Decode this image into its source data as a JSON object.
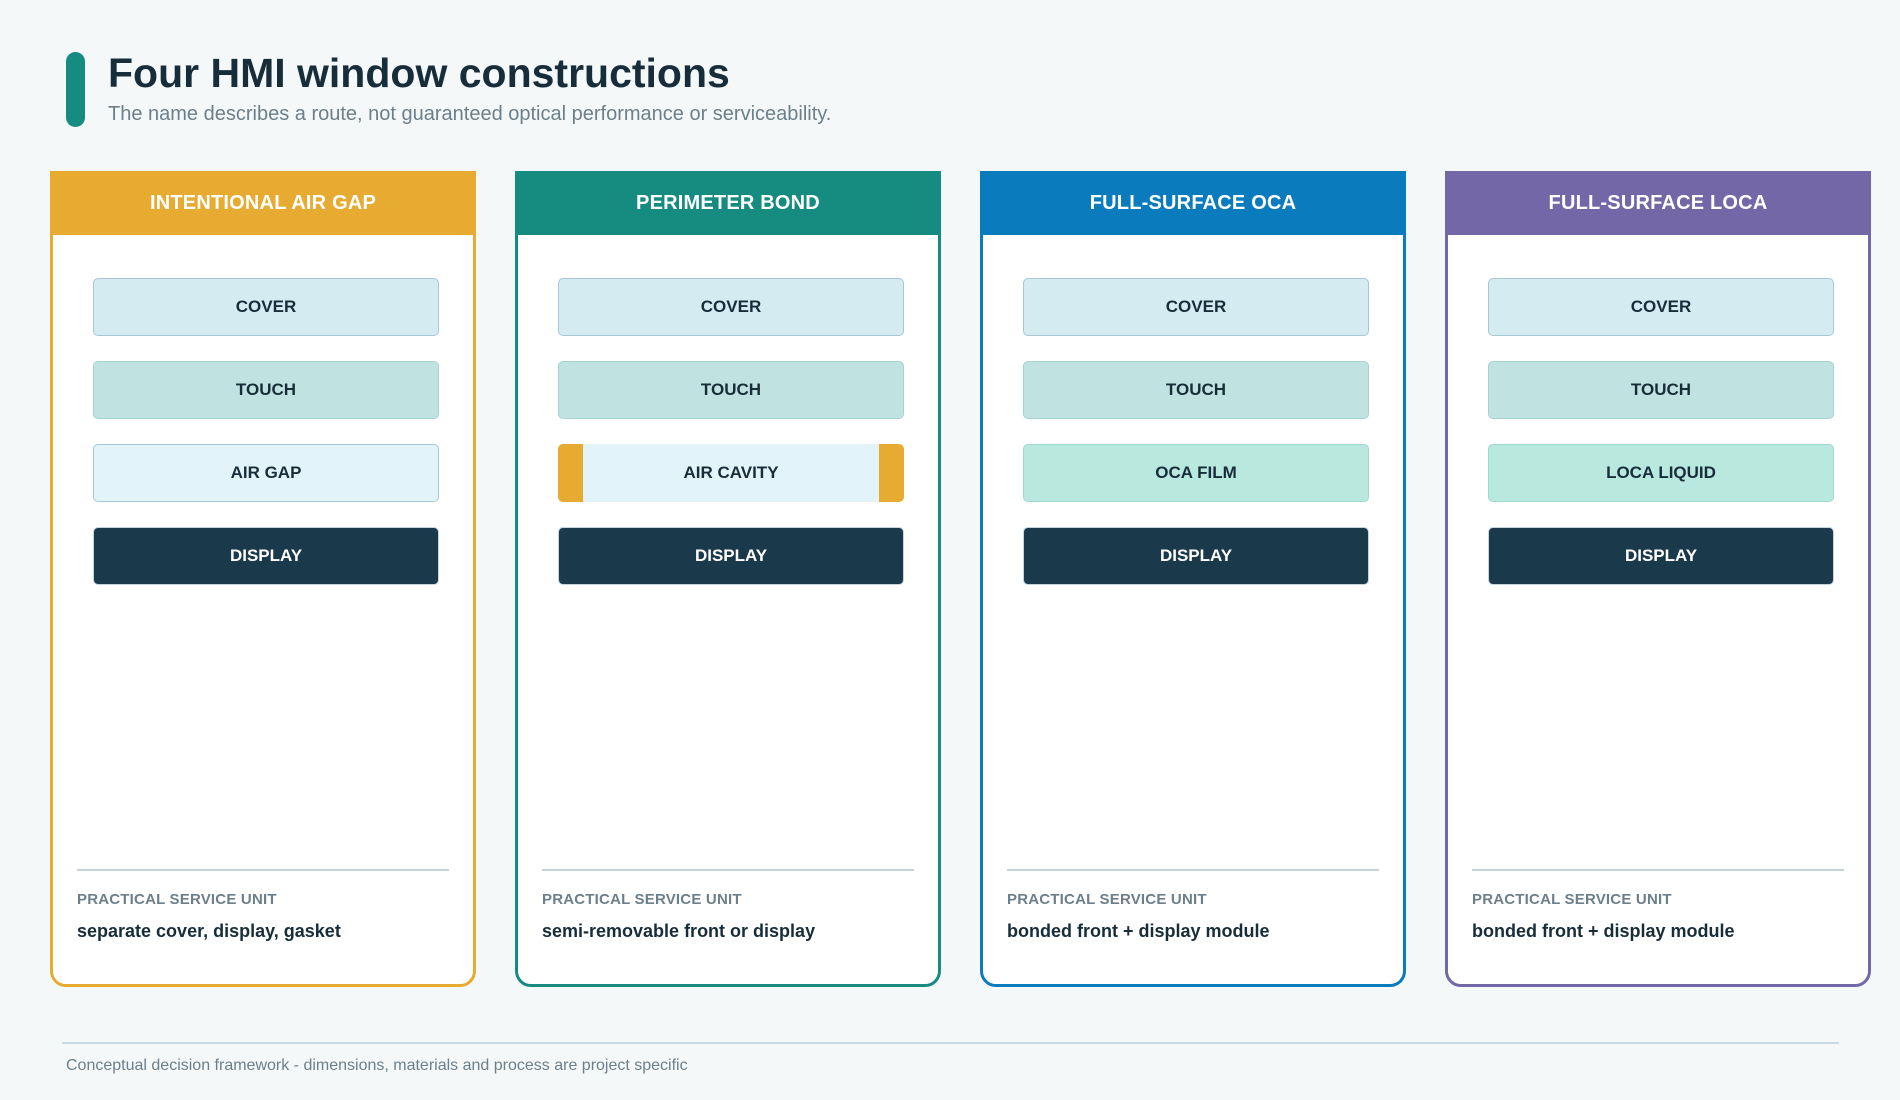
{
  "header": {
    "title": "Four HMI window constructions",
    "subtitle": "The name describes a route, not guaranteed optical performance or serviceability."
  },
  "colors": {
    "air_gap": "#e6ab30",
    "perimeter_bond": "#168b80",
    "full_surface_oca": "#0a7bbd",
    "full_surface_loca": "#7367a8",
    "display": "#1a3a4c"
  },
  "cards": [
    {
      "title": "INTENTIONAL AIR GAP",
      "layers": [
        "COVER",
        "TOUCH",
        "AIR GAP",
        "DISPLAY"
      ],
      "service_label": "PRACTICAL SERVICE UNIT",
      "service_value": "separate cover, display, gasket"
    },
    {
      "title": "PERIMETER BOND",
      "layers": [
        "COVER",
        "TOUCH",
        "AIR CAVITY",
        "DISPLAY"
      ],
      "service_label": "PRACTICAL SERVICE UNIT",
      "service_value": "semi-removable front or display"
    },
    {
      "title": "FULL-SURFACE OCA",
      "layers": [
        "COVER",
        "TOUCH",
        "OCA FILM",
        "DISPLAY"
      ],
      "service_label": "PRACTICAL SERVICE UNIT",
      "service_value": "bonded front + display module"
    },
    {
      "title": "FULL-SURFACE LOCA",
      "layers": [
        "COVER",
        "TOUCH",
        "LOCA LIQUID",
        "DISPLAY"
      ],
      "service_label": "PRACTICAL SERVICE UNIT",
      "service_value": "bonded front + display module"
    }
  ],
  "footer": {
    "note": "Conceptual decision framework - dimensions, materials and process are project specific"
  }
}
